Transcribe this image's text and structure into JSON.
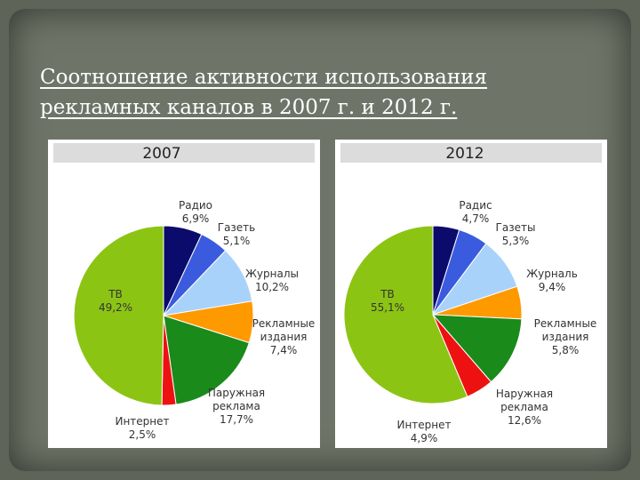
{
  "slide": {
    "title_line1": "Соотношение активности использования",
    "title_line2": "рекламных каналов в 2007 г. и 2012 г.",
    "background_color": "#6e7467"
  },
  "chart_data": [
    {
      "type": "pie",
      "title": "2007",
      "unit": "%",
      "slices": [
        {
          "name": "Радио",
          "value": 6.9,
          "value_label": "6,9%",
          "color": "#0b0b6b"
        },
        {
          "name": "Газеть",
          "value": 5.1,
          "value_label": "5,1%",
          "color": "#3b5bde"
        },
        {
          "name": "Журналы",
          "value": 10.2,
          "value_label": "10,2%",
          "color": "#a9d2fb"
        },
        {
          "name": "Рекламные издания",
          "value": 7.4,
          "value_label": "7,4%",
          "color": "#ff9900"
        },
        {
          "name": "Паружная реклама",
          "value": 17.7,
          "value_label": "17,7%",
          "color": "#1a8a1a"
        },
        {
          "name": "Интернет",
          "value": 2.5,
          "value_label": "2,5%",
          "color": "#ee1111"
        },
        {
          "name": "ТВ",
          "value": 49.2,
          "value_label": "49,2%",
          "color": "#8cc414"
        }
      ]
    },
    {
      "type": "pie",
      "title": "2012",
      "unit": "%",
      "slices": [
        {
          "name": "Радис",
          "value": 4.7,
          "value_label": "4,7%",
          "color": "#0b0b6b"
        },
        {
          "name": "Газеты",
          "value": 5.3,
          "value_label": "5,3%",
          "color": "#3b5bde"
        },
        {
          "name": "Журналь",
          "value": 9.4,
          "value_label": "9,4%",
          "color": "#a9d2fb"
        },
        {
          "name": "Рекламные издания",
          "value": 5.8,
          "value_label": "5,8%",
          "color": "#ff9900"
        },
        {
          "name": "Наружная реклама",
          "value": 12.6,
          "value_label": "12,6%",
          "color": "#1a8a1a"
        },
        {
          "name": "Интернет",
          "value": 4.9,
          "value_label": "4,9%",
          "color": "#ee1111"
        },
        {
          "name": "ТВ",
          "value": 55.1,
          "value_label": "55,1%",
          "color": "#8cc414"
        }
      ]
    }
  ]
}
